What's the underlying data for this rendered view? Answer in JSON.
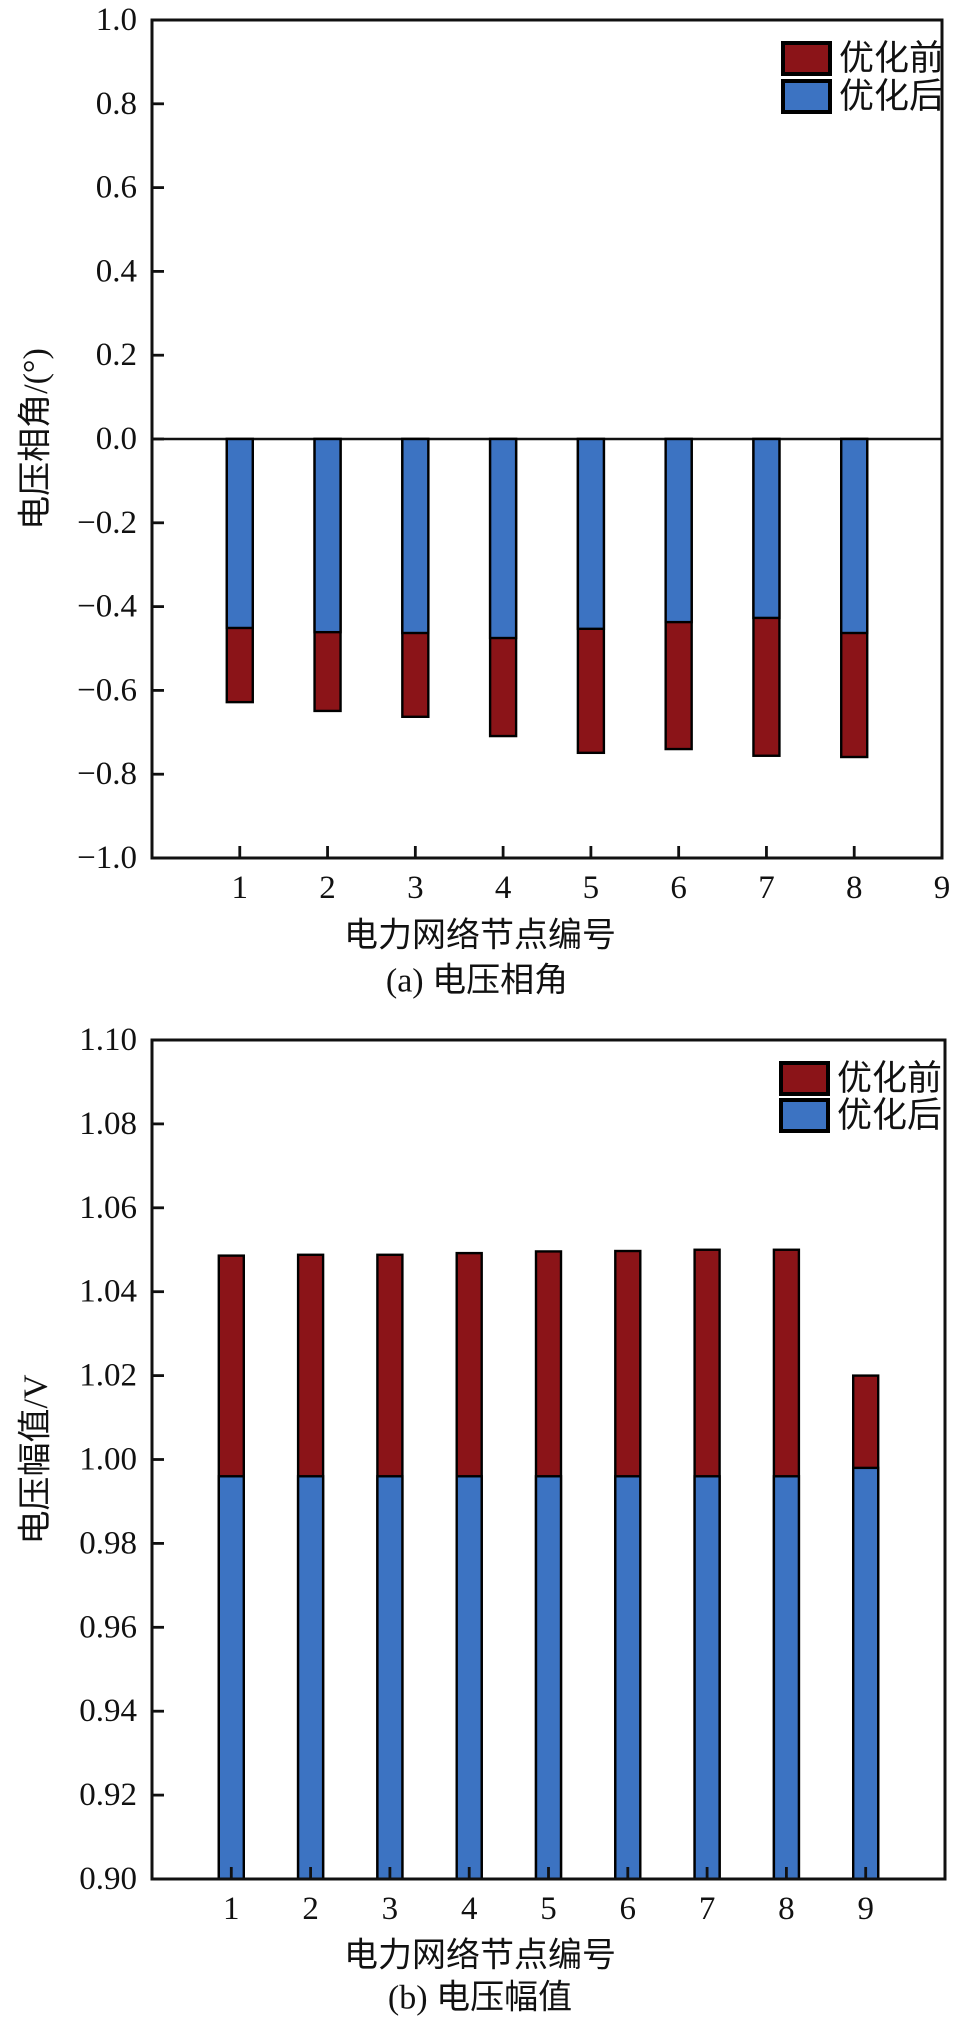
{
  "figure": {
    "background": "#ffffff",
    "axis_color": "#111111",
    "bar_outline_color": "#000000"
  },
  "chart_data": [
    {
      "type": "bar",
      "subtype": "overlaid-vertical-bars",
      "title": "(a) 电压相角",
      "xlabel": "电力网络节点编号",
      "ylabel": "电压相角/(°)",
      "ylim": [
        -1.0,
        1.0
      ],
      "ytick_step": 0.2,
      "ytick_labels": [
        "1.0",
        "0.8",
        "0.6",
        "0.4",
        "0.2",
        "0.0",
        "−0.2",
        "−0.4",
        "−0.6",
        "−0.8",
        "−1.0"
      ],
      "xlim": [
        0,
        9
      ],
      "xticks": [
        1,
        2,
        3,
        4,
        5,
        6,
        7,
        8,
        9
      ],
      "xtick_labels": [
        "1",
        "2",
        "3",
        "4",
        "5",
        "6",
        "7",
        "8",
        "9"
      ],
      "categories": [
        1,
        2,
        3,
        4,
        5,
        6,
        7,
        8
      ],
      "baseline": 0.0,
      "zero_line": true,
      "grid": false,
      "legend_position": "top-right",
      "series": [
        {
          "key": "before",
          "name": "优化前",
          "color": "#8b1418",
          "values": [
            -0.628,
            -0.649,
            -0.663,
            -0.709,
            -0.749,
            -0.74,
            -0.756,
            -0.759
          ]
        },
        {
          "key": "after",
          "name": "优化后",
          "color": "#3c73c2",
          "values": [
            -0.451,
            -0.461,
            -0.463,
            -0.475,
            -0.453,
            -0.437,
            -0.427,
            -0.463
          ]
        }
      ]
    },
    {
      "type": "bar",
      "subtype": "overlaid-vertical-bars",
      "title": "(b) 电压幅值",
      "xlabel": "电力网络节点编号",
      "ylabel": "电压幅值/V",
      "ylim": [
        0.9,
        1.1
      ],
      "ytick_step": 0.02,
      "ytick_labels": [
        "1.10",
        "1.08",
        "1.06",
        "1.04",
        "1.02",
        "1.00",
        "0.98",
        "0.96",
        "0.94",
        "0.92",
        "0.90"
      ],
      "xlim": [
        0,
        10
      ],
      "xticks": [
        1,
        2,
        3,
        4,
        5,
        6,
        7,
        8,
        9
      ],
      "xtick_labels": [
        "1",
        "2",
        "3",
        "4",
        "5",
        "6",
        "7",
        "8",
        "9"
      ],
      "categories": [
        1,
        2,
        3,
        4,
        5,
        6,
        7,
        8,
        9
      ],
      "baseline": 0.9,
      "zero_line": false,
      "grid": false,
      "legend_position": "top-right",
      "series": [
        {
          "key": "before",
          "name": "优化前",
          "color": "#8b1418",
          "values": [
            1.0486,
            1.0488,
            1.0488,
            1.0492,
            1.0496,
            1.0497,
            1.05,
            1.05,
            1.02
          ]
        },
        {
          "key": "after",
          "name": "优化后",
          "color": "#3c73c2",
          "values": [
            0.996,
            0.996,
            0.996,
            0.996,
            0.996,
            0.996,
            0.996,
            0.996,
            0.998
          ]
        }
      ]
    }
  ]
}
